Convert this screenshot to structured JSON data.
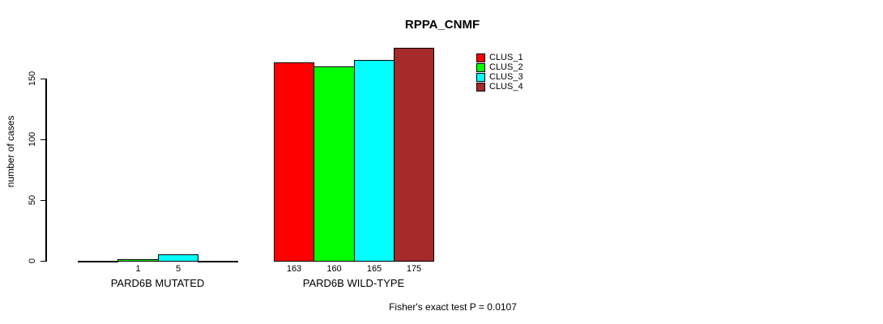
{
  "chart_data": {
    "type": "bar",
    "title": "RPPA_CNMF",
    "ylabel": "number of cases",
    "yticks": [
      0,
      50,
      100,
      150
    ],
    "ylim": [
      0,
      175
    ],
    "grid": false,
    "legend_position": "top-right",
    "categories": [
      "PARD6B MUTATED",
      "PARD6B WILD-TYPE"
    ],
    "series": [
      {
        "name": "CLUS_1",
        "color": "#FF0000",
        "values": [
          0,
          163
        ]
      },
      {
        "name": "CLUS_2",
        "color": "#00FF00",
        "values": [
          1,
          160
        ]
      },
      {
        "name": "CLUS_3",
        "color": "#00FFFF",
        "values": [
          5,
          165
        ]
      },
      {
        "name": "CLUS_4",
        "color": "#A52A2A",
        "values": [
          0,
          175
        ]
      }
    ],
    "bar_value_labels": [
      "1",
      "5",
      "163",
      "160",
      "165",
      "175"
    ],
    "annotation": "Fisher's exact test P = 0.0107",
    "axis_color": "#000000"
  }
}
